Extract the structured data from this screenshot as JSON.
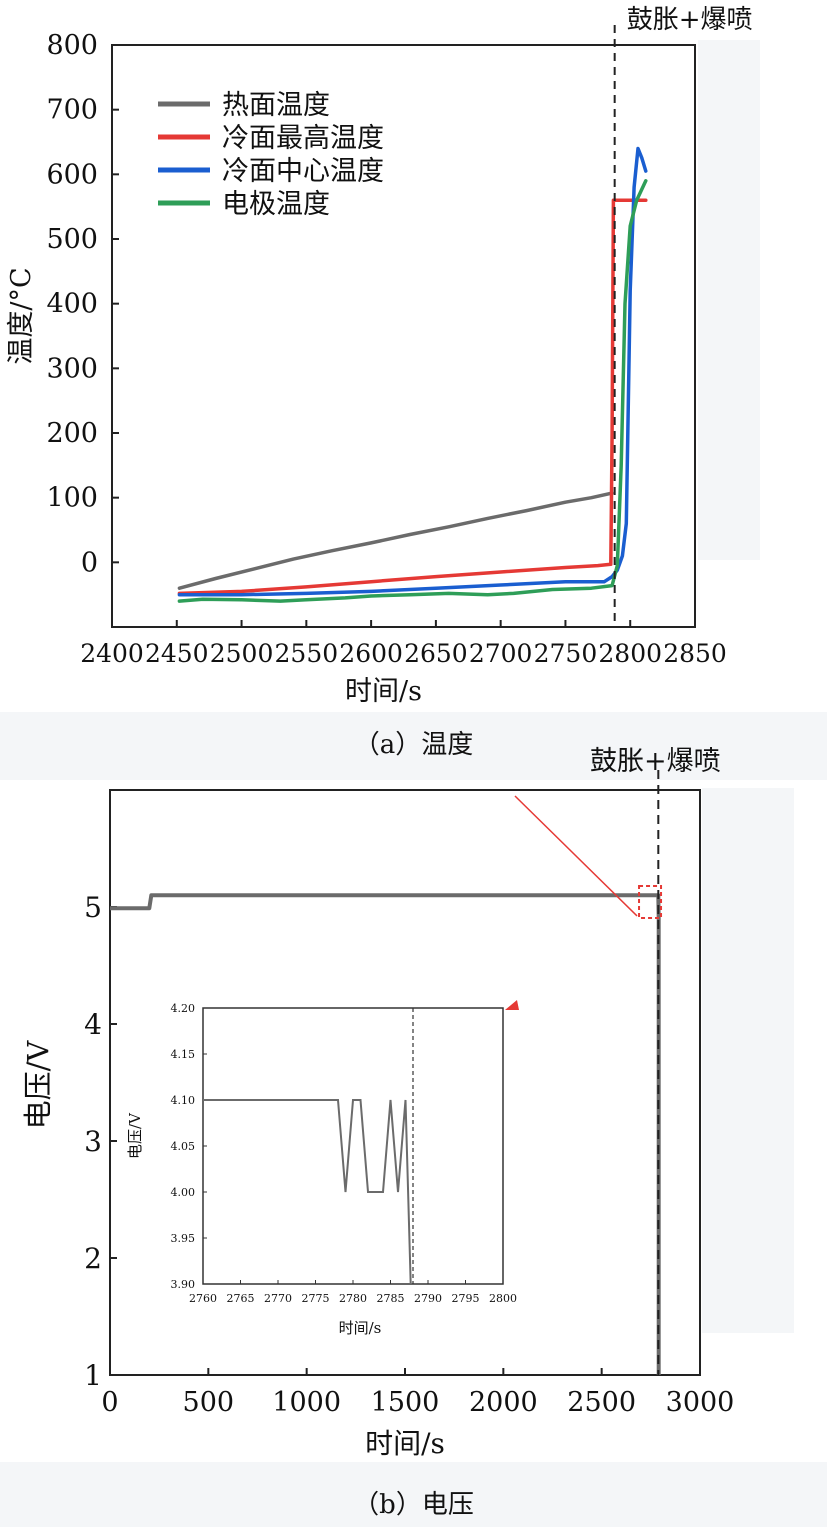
{
  "chart_data": [
    {
      "type": "line",
      "caption": "（a）温度",
      "xlabel": "时间/s",
      "ylabel": "温度/°C",
      "xlim": [
        2400,
        2850
      ],
      "ylim": [
        -100,
        800
      ],
      "x_ticks": [
        2400,
        2450,
        2500,
        2550,
        2600,
        2650,
        2700,
        2750,
        2800,
        2850
      ],
      "y_ticks": [
        0,
        100,
        200,
        300,
        400,
        500,
        600,
        700,
        800
      ],
      "event_label": "鼓胀+爆喷",
      "event_x": 2788,
      "legend_position": "top-left",
      "series": [
        {
          "name": "热面温度",
          "color": "#6b6b6b",
          "x": [
            2452,
            2480,
            2510,
            2540,
            2570,
            2600,
            2630,
            2660,
            2690,
            2720,
            2750,
            2770,
            2786
          ],
          "y": [
            -40,
            -25,
            -10,
            5,
            18,
            30,
            43,
            55,
            68,
            80,
            93,
            100,
            107
          ]
        },
        {
          "name": "冷面最高温度",
          "color": "#e53935",
          "x": [
            2452,
            2500,
            2550,
            2600,
            2650,
            2700,
            2750,
            2775,
            2785,
            2786,
            2787,
            2790,
            2800,
            2812
          ],
          "y": [
            -48,
            -45,
            -38,
            -30,
            -22,
            -15,
            -8,
            -5,
            -3,
            200,
            560,
            560,
            560,
            560
          ]
        },
        {
          "name": "冷面中心温度",
          "color": "#1a5ed0",
          "x": [
            2452,
            2500,
            2550,
            2600,
            2650,
            2700,
            2750,
            2780,
            2786,
            2790,
            2794,
            2797,
            2800,
            2803,
            2806,
            2809,
            2812
          ],
          "y": [
            -50,
            -50,
            -48,
            -45,
            -40,
            -35,
            -30,
            -30,
            -22,
            -12,
            10,
            60,
            420,
            580,
            640,
            625,
            605
          ]
        },
        {
          "name": "电极温度",
          "color": "#2e9e58",
          "x": [
            2452,
            2470,
            2500,
            2530,
            2550,
            2580,
            2600,
            2630,
            2660,
            2690,
            2710,
            2740,
            2770,
            2786,
            2790,
            2793,
            2796,
            2800,
            2805,
            2812
          ],
          "y": [
            -60,
            -57,
            -58,
            -60,
            -58,
            -55,
            -52,
            -50,
            -48,
            -50,
            -48,
            -42,
            -40,
            -36,
            -5,
            150,
            400,
            520,
            560,
            590
          ]
        }
      ]
    },
    {
      "type": "line",
      "caption": "（b）电压",
      "xlabel": "时间/s",
      "ylabel": "电压/V",
      "xlim": [
        0,
        3000
      ],
      "ylim": [
        1,
        6
      ],
      "x_ticks": [
        0,
        500,
        1000,
        1500,
        2000,
        2500,
        3000
      ],
      "y_ticks": [
        1,
        2,
        3,
        4,
        5
      ],
      "event_label": "鼓胀+爆喷",
      "event_x": 2788,
      "series": [
        {
          "color": "#6b6b6b",
          "x": [
            0,
            200,
            210,
            2780,
            2788,
            2790,
            2790
          ],
          "y": [
            4.99,
            4.99,
            5.1,
            5.1,
            5.1,
            4.9,
            1
          ]
        }
      ],
      "inset": {
        "xlabel": "时间/s",
        "ylabel": "电压/V",
        "xlim": [
          2760,
          2800
        ],
        "ylim": [
          3.9,
          4.2
        ],
        "x_ticks": [
          2760,
          2765,
          2770,
          2775,
          2780,
          2785,
          2790,
          2795,
          2800
        ],
        "y_ticks": [
          3.9,
          3.95,
          4.0,
          4.05,
          4.1,
          4.15,
          4.2
        ],
        "event_x": 2788,
        "series": [
          {
            "color": "#6b6b6b",
            "x": [
              2760,
              2778,
              2779,
              2780,
              2781,
              2782,
              2782.2,
              2784,
              2785,
              2786,
              2787,
              2787.7
            ],
            "y": [
              4.1,
              4.1,
              4.0,
              4.1,
              4.1,
              4.0,
              4.0,
              4.0,
              4.1,
              4.0,
              4.1,
              3.9
            ]
          }
        ]
      }
    }
  ]
}
